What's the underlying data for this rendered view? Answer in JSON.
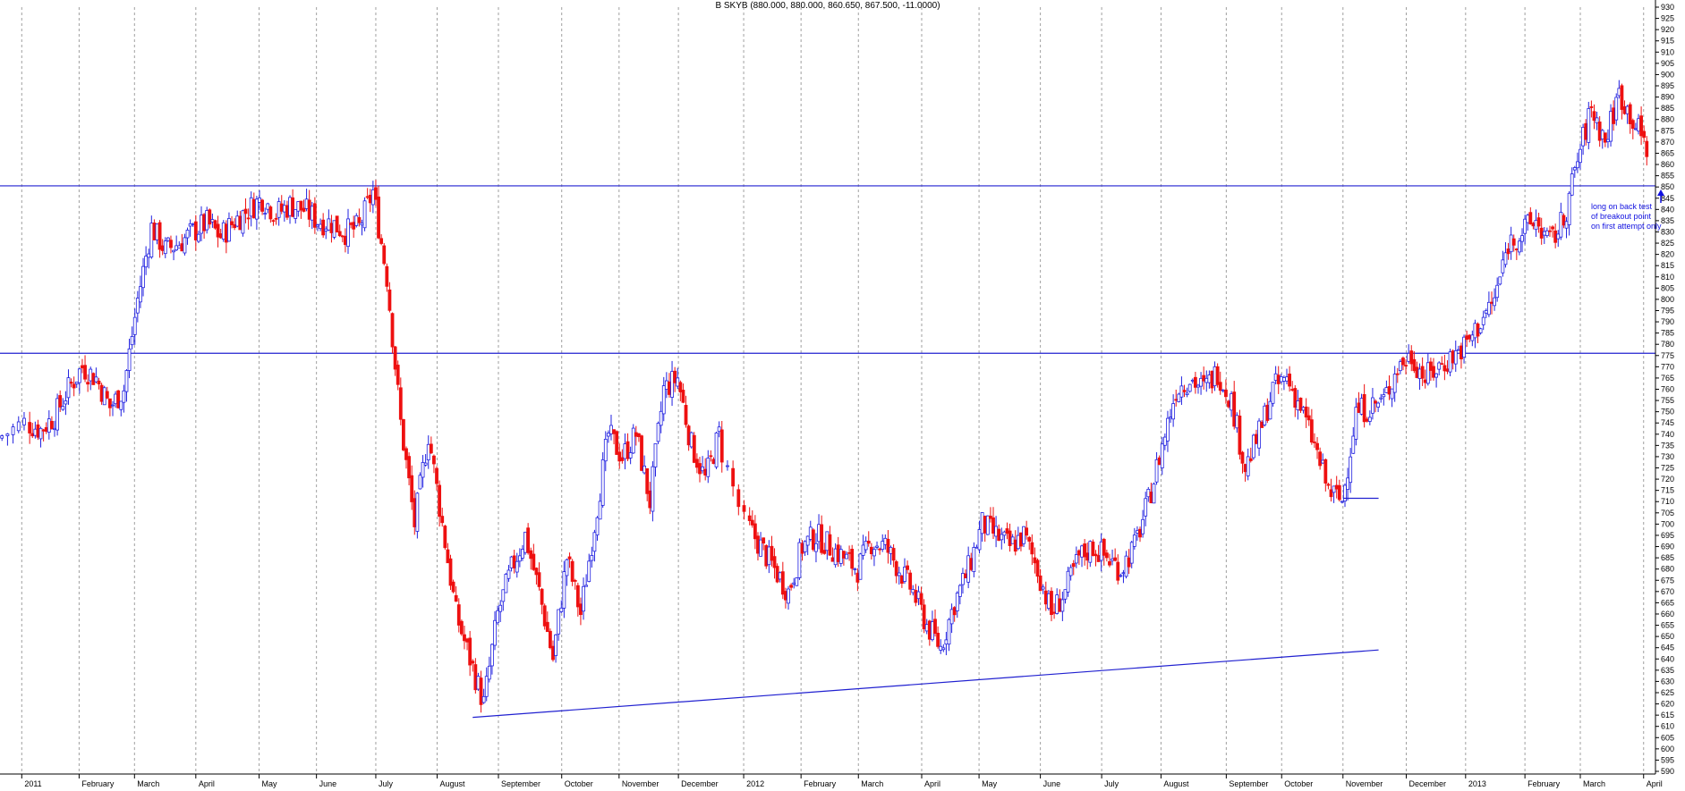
{
  "header": {
    "title": "B SKYB (880.000, 880.000, 860.650, 867.500, -11.0000)"
  },
  "annotation": {
    "lines": [
      "long on back test",
      "of breakout point",
      "on first attempt only"
    ],
    "arrow_icon": "up-arrow-icon"
  },
  "colors": {
    "up": "#2020e0",
    "down": "#ee1010",
    "trend": "#2020d0",
    "grid": "#a0a0a0"
  },
  "chart_data": {
    "type": "candlestick",
    "title": "B SKYB (880.000, 880.000, 860.650, 867.500, -11.0000)",
    "ylim": [
      585,
      930
    ],
    "y_ticks": [
      590,
      595,
      600,
      605,
      610,
      615,
      620,
      625,
      630,
      635,
      640,
      645,
      650,
      655,
      660,
      665,
      670,
      675,
      680,
      685,
      690,
      695,
      700,
      705,
      710,
      715,
      720,
      725,
      730,
      735,
      740,
      745,
      750,
      755,
      760,
      765,
      770,
      775,
      780,
      785,
      790,
      795,
      800,
      805,
      810,
      815,
      820,
      825,
      830,
      835,
      840,
      845,
      850,
      855,
      860,
      865,
      870,
      875,
      880,
      885,
      890,
      895,
      900,
      905,
      910,
      915,
      920,
      925,
      930
    ],
    "x_start": "2010-12-23",
    "x_end": "2013-04-08",
    "month_labels": [
      {
        "label": "2011",
        "date": "2011-01-03"
      },
      {
        "label": "February",
        "date": "2011-02-01"
      },
      {
        "label": "March",
        "date": "2011-03-01"
      },
      {
        "label": "April",
        "date": "2011-04-01"
      },
      {
        "label": "May",
        "date": "2011-05-03"
      },
      {
        "label": "June",
        "date": "2011-06-01"
      },
      {
        "label": "July",
        "date": "2011-07-01"
      },
      {
        "label": "August",
        "date": "2011-08-01"
      },
      {
        "label": "September",
        "date": "2011-09-01"
      },
      {
        "label": "October",
        "date": "2011-10-03"
      },
      {
        "label": "November",
        "date": "2011-11-01"
      },
      {
        "label": "December",
        "date": "2011-12-01"
      },
      {
        "label": "2012",
        "date": "2012-01-03"
      },
      {
        "label": "February",
        "date": "2012-02-01"
      },
      {
        "label": "March",
        "date": "2012-03-01"
      },
      {
        "label": "April",
        "date": "2012-04-02"
      },
      {
        "label": "May",
        "date": "2012-05-01"
      },
      {
        "label": "June",
        "date": "2012-06-01"
      },
      {
        "label": "July",
        "date": "2012-07-02"
      },
      {
        "label": "August",
        "date": "2012-08-01"
      },
      {
        "label": "September",
        "date": "2012-09-03"
      },
      {
        "label": "October",
        "date": "2012-10-01"
      },
      {
        "label": "November",
        "date": "2012-11-01"
      },
      {
        "label": "December",
        "date": "2012-12-03"
      },
      {
        "label": "2013",
        "date": "2013-01-02"
      },
      {
        "label": "February",
        "date": "2013-02-01"
      },
      {
        "label": "March",
        "date": "2013-03-01"
      },
      {
        "label": "April",
        "date": "2013-04-02"
      }
    ],
    "weekly_close": [
      {
        "date": "2010-12-24",
        "close": 738
      },
      {
        "date": "2011-01-07",
        "close": 745
      },
      {
        "date": "2011-01-14",
        "close": 742
      },
      {
        "date": "2011-01-21",
        "close": 748
      },
      {
        "date": "2011-01-28",
        "close": 760
      },
      {
        "date": "2011-02-04",
        "close": 770
      },
      {
        "date": "2011-02-11",
        "close": 765
      },
      {
        "date": "2011-02-18",
        "close": 752
      },
      {
        "date": "2011-02-25",
        "close": 760
      },
      {
        "date": "2011-03-04",
        "close": 800
      },
      {
        "date": "2011-03-11",
        "close": 832
      },
      {
        "date": "2011-03-18",
        "close": 822
      },
      {
        "date": "2011-03-25",
        "close": 825
      },
      {
        "date": "2011-04-01",
        "close": 830
      },
      {
        "date": "2011-04-08",
        "close": 834
      },
      {
        "date": "2011-04-15",
        "close": 828
      },
      {
        "date": "2011-04-22",
        "close": 835
      },
      {
        "date": "2011-04-29",
        "close": 840
      },
      {
        "date": "2011-05-06",
        "close": 845
      },
      {
        "date": "2011-05-13",
        "close": 838
      },
      {
        "date": "2011-05-20",
        "close": 842
      },
      {
        "date": "2011-05-27",
        "close": 840
      },
      {
        "date": "2011-06-03",
        "close": 835
      },
      {
        "date": "2011-06-10",
        "close": 834
      },
      {
        "date": "2011-06-17",
        "close": 830
      },
      {
        "date": "2011-06-24",
        "close": 832
      },
      {
        "date": "2011-07-01",
        "close": 848
      },
      {
        "date": "2011-07-08",
        "close": 810
      },
      {
        "date": "2011-07-15",
        "close": 745
      },
      {
        "date": "2011-07-22",
        "close": 700
      },
      {
        "date": "2011-07-29",
        "close": 740
      },
      {
        "date": "2011-08-05",
        "close": 700
      },
      {
        "date": "2011-08-12",
        "close": 660
      },
      {
        "date": "2011-08-19",
        "close": 640
      },
      {
        "date": "2011-08-26",
        "close": 620
      },
      {
        "date": "2011-09-02",
        "close": 660
      },
      {
        "date": "2011-09-09",
        "close": 680
      },
      {
        "date": "2011-09-16",
        "close": 695
      },
      {
        "date": "2011-09-23",
        "close": 670
      },
      {
        "date": "2011-09-30",
        "close": 640
      },
      {
        "date": "2011-10-07",
        "close": 685
      },
      {
        "date": "2011-10-14",
        "close": 660
      },
      {
        "date": "2011-10-21",
        "close": 700
      },
      {
        "date": "2011-10-28",
        "close": 740
      },
      {
        "date": "2011-11-04",
        "close": 730
      },
      {
        "date": "2011-11-11",
        "close": 740
      },
      {
        "date": "2011-11-18",
        "close": 710
      },
      {
        "date": "2011-11-25",
        "close": 760
      },
      {
        "date": "2011-12-02",
        "close": 765
      },
      {
        "date": "2011-12-09",
        "close": 735
      },
      {
        "date": "2011-12-16",
        "close": 720
      },
      {
        "date": "2011-12-23",
        "close": 740
      },
      {
        "date": "2012-01-06",
        "close": 700
      },
      {
        "date": "2012-01-13",
        "close": 690
      },
      {
        "date": "2012-01-20",
        "close": 680
      },
      {
        "date": "2012-01-27",
        "close": 670
      },
      {
        "date": "2012-02-03",
        "close": 690
      },
      {
        "date": "2012-02-10",
        "close": 695
      },
      {
        "date": "2012-02-17",
        "close": 690
      },
      {
        "date": "2012-02-24",
        "close": 685
      },
      {
        "date": "2012-03-02",
        "close": 680
      },
      {
        "date": "2012-03-09",
        "close": 692
      },
      {
        "date": "2012-03-16",
        "close": 690
      },
      {
        "date": "2012-03-23",
        "close": 680
      },
      {
        "date": "2012-03-30",
        "close": 670
      },
      {
        "date": "2012-04-06",
        "close": 655
      },
      {
        "date": "2012-04-13",
        "close": 645
      },
      {
        "date": "2012-04-20",
        "close": 665
      },
      {
        "date": "2012-04-27",
        "close": 680
      },
      {
        "date": "2012-05-04",
        "close": 700
      },
      {
        "date": "2012-05-11",
        "close": 695
      },
      {
        "date": "2012-05-18",
        "close": 690
      },
      {
        "date": "2012-05-25",
        "close": 695
      },
      {
        "date": "2012-06-01",
        "close": 680
      },
      {
        "date": "2012-06-08",
        "close": 660
      },
      {
        "date": "2012-06-15",
        "close": 670
      },
      {
        "date": "2012-06-22",
        "close": 685
      },
      {
        "date": "2012-06-29",
        "close": 690
      },
      {
        "date": "2012-07-06",
        "close": 685
      },
      {
        "date": "2012-07-13",
        "close": 680
      },
      {
        "date": "2012-07-20",
        "close": 690
      },
      {
        "date": "2012-07-27",
        "close": 710
      },
      {
        "date": "2012-08-03",
        "close": 735
      },
      {
        "date": "2012-08-10",
        "close": 760
      },
      {
        "date": "2012-08-17",
        "close": 765
      },
      {
        "date": "2012-08-24",
        "close": 760
      },
      {
        "date": "2012-08-31",
        "close": 768
      },
      {
        "date": "2012-09-07",
        "close": 755
      },
      {
        "date": "2012-09-14",
        "close": 725
      },
      {
        "date": "2012-09-21",
        "close": 740
      },
      {
        "date": "2012-09-28",
        "close": 760
      },
      {
        "date": "2012-10-05",
        "close": 765
      },
      {
        "date": "2012-10-12",
        "close": 752
      },
      {
        "date": "2012-10-19",
        "close": 735
      },
      {
        "date": "2012-10-26",
        "close": 715
      },
      {
        "date": "2012-11-02",
        "close": 710
      },
      {
        "date": "2012-11-09",
        "close": 750
      },
      {
        "date": "2012-11-16",
        "close": 752
      },
      {
        "date": "2012-11-23",
        "close": 755
      },
      {
        "date": "2012-11-30",
        "close": 770
      },
      {
        "date": "2012-12-07",
        "close": 775
      },
      {
        "date": "2012-12-14",
        "close": 765
      },
      {
        "date": "2012-12-21",
        "close": 770
      },
      {
        "date": "2012-12-28",
        "close": 775
      },
      {
        "date": "2013-01-04",
        "close": 780
      },
      {
        "date": "2013-01-11",
        "close": 790
      },
      {
        "date": "2013-01-18",
        "close": 800
      },
      {
        "date": "2013-01-25",
        "close": 825
      },
      {
        "date": "2013-02-01",
        "close": 830
      },
      {
        "date": "2013-02-08",
        "close": 835
      },
      {
        "date": "2013-02-15",
        "close": 825
      },
      {
        "date": "2013-02-22",
        "close": 835
      },
      {
        "date": "2013-03-01",
        "close": 862
      },
      {
        "date": "2013-03-08",
        "close": 885
      },
      {
        "date": "2013-03-15",
        "close": 870
      },
      {
        "date": "2013-03-22",
        "close": 892
      },
      {
        "date": "2013-03-29",
        "close": 880
      },
      {
        "date": "2013-04-05",
        "close": 867.5
      }
    ],
    "horizontal_lines": [
      {
        "name": "resistance-850",
        "y": 850.5
      },
      {
        "name": "resistance-776",
        "y": 776
      }
    ],
    "trendlines": [
      {
        "name": "support-trendline",
        "x1": "2011-08-19",
        "y1": 614,
        "x2": "2012-11-19",
        "y2": 644
      },
      {
        "name": "short-marker",
        "x1": "2012-11-01",
        "y1": 711.5,
        "x2": "2012-11-19",
        "y2": 711.5
      }
    ]
  }
}
